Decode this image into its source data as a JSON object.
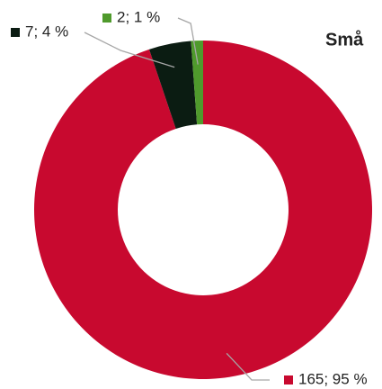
{
  "chart_data": {
    "type": "donut",
    "title": "Små",
    "categories": [
      null,
      null,
      null
    ],
    "values": [
      165,
      7,
      2
    ],
    "value_labels": [
      "165; 95 %",
      "7; 4 %",
      "2; 1 %"
    ],
    "colors": [
      "#c8092f",
      "#0b1c12",
      "#4f9a2c"
    ]
  }
}
